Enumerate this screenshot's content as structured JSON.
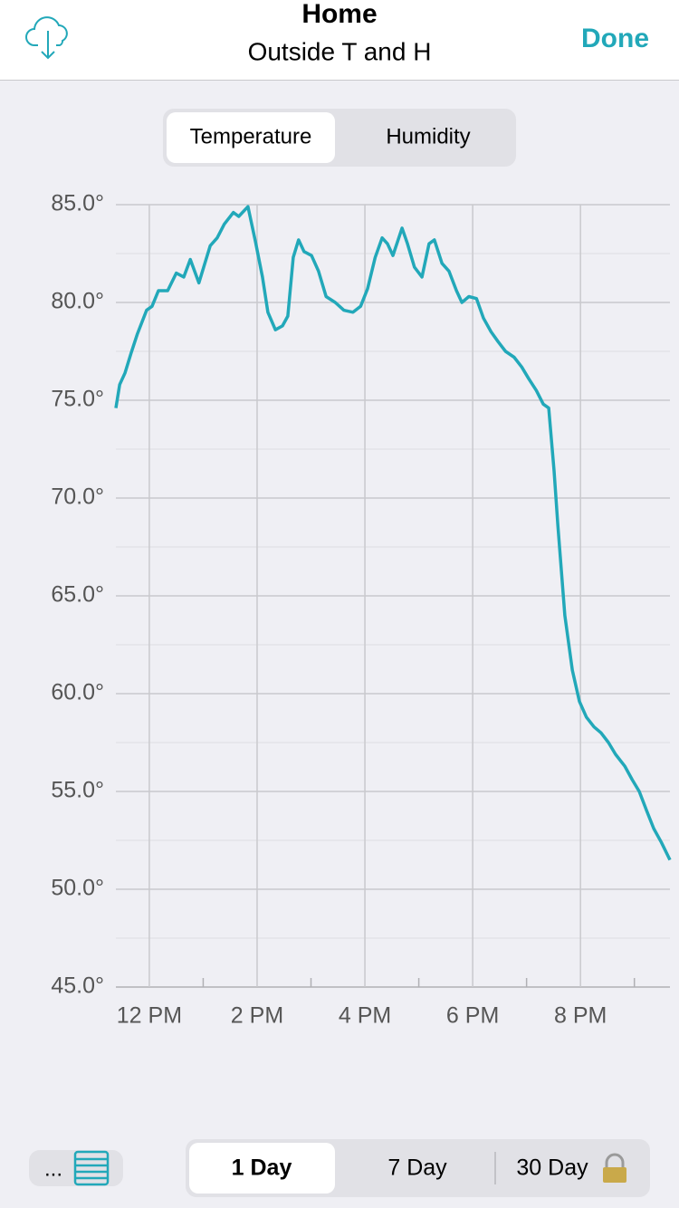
{
  "header": {
    "title": "Home",
    "subtitle": "Outside T and H",
    "done": "Done"
  },
  "tabs": [
    "Temperature",
    "Humidity"
  ],
  "menu": "...",
  "ranges": [
    "1 Day",
    "7 Day",
    "30 Day"
  ],
  "chart_data": {
    "type": "line",
    "color": "#22a8b9",
    "grid": true,
    "x": [
      11.38,
      11.45,
      11.55,
      11.66,
      11.78,
      11.95,
      12.05,
      12.17,
      12.34,
      12.5,
      12.64,
      12.76,
      12.92,
      13.13,
      13.26,
      13.39,
      13.56,
      13.66,
      13.83,
      13.97,
      14.1,
      14.2,
      14.34,
      14.47,
      14.57,
      14.67,
      14.77,
      14.87,
      15.01,
      15.14,
      15.28,
      15.45,
      15.61,
      15.78,
      15.92,
      16.05,
      16.19,
      16.32,
      16.42,
      16.52,
      16.69,
      16.79,
      16.92,
      17.06,
      17.19,
      17.29,
      17.43,
      17.56,
      17.7,
      17.8,
      17.93,
      18.07,
      18.2,
      18.34,
      18.47,
      18.61,
      18.77,
      18.91,
      19.04,
      19.18,
      19.31,
      19.41,
      19.51,
      19.58,
      19.71,
      19.85,
      19.98,
      20.11,
      20.25,
      20.38,
      20.52,
      20.65,
      20.82,
      20.96,
      21.09,
      21.23,
      21.36,
      21.5,
      21.66
    ],
    "values": [
      74.6,
      75.8,
      76.4,
      77.4,
      78.4,
      79.6,
      79.8,
      80.6,
      80.6,
      81.5,
      81.3,
      82.2,
      81.0,
      82.9,
      83.3,
      84.0,
      84.6,
      84.4,
      84.9,
      83.1,
      81.3,
      79.5,
      78.6,
      78.8,
      79.3,
      82.3,
      83.2,
      82.6,
      82.4,
      81.6,
      80.3,
      80.0,
      79.6,
      79.5,
      79.8,
      80.7,
      82.3,
      83.3,
      83.0,
      82.4,
      83.8,
      83.0,
      81.8,
      81.3,
      83.0,
      83.2,
      82.0,
      81.6,
      80.6,
      80.0,
      80.3,
      80.2,
      79.2,
      78.5,
      78.0,
      77.5,
      77.2,
      76.7,
      76.1,
      75.5,
      74.8,
      74.6,
      71.4,
      68.6,
      64.0,
      61.2,
      59.6,
      58.8,
      58.3,
      58.0,
      57.5,
      56.9,
      56.3,
      55.6,
      55.0,
      54.0,
      53.1,
      52.4,
      51.5
    ],
    "xlim": [
      11.38,
      21.66
    ],
    "xticks": [
      {
        "value": 12,
        "label": "12 PM"
      },
      {
        "value": 14,
        "label": "2 PM"
      },
      {
        "value": 16,
        "label": "4 PM"
      },
      {
        "value": 18,
        "label": "6 PM"
      },
      {
        "value": 20,
        "label": "8 PM"
      }
    ],
    "minor_xticks": [
      13,
      15,
      17,
      19,
      21
    ],
    "ylim": [
      45,
      85
    ],
    "yticks": [
      {
        "value": 45,
        "label": "45.0°"
      },
      {
        "value": 50,
        "label": "50.0°"
      },
      {
        "value": 55,
        "label": "55.0°"
      },
      {
        "value": 60,
        "label": "60.0°"
      },
      {
        "value": 65,
        "label": "65.0°"
      },
      {
        "value": 70,
        "label": "70.0°"
      },
      {
        "value": 75,
        "label": "75.0°"
      },
      {
        "value": 80,
        "label": "80.0°"
      },
      {
        "value": 85,
        "label": "85.0°"
      }
    ],
    "minor_yticks": [
      47.5,
      52.5,
      57.5,
      62.5,
      67.5,
      72.5,
      77.5,
      82.5
    ]
  }
}
